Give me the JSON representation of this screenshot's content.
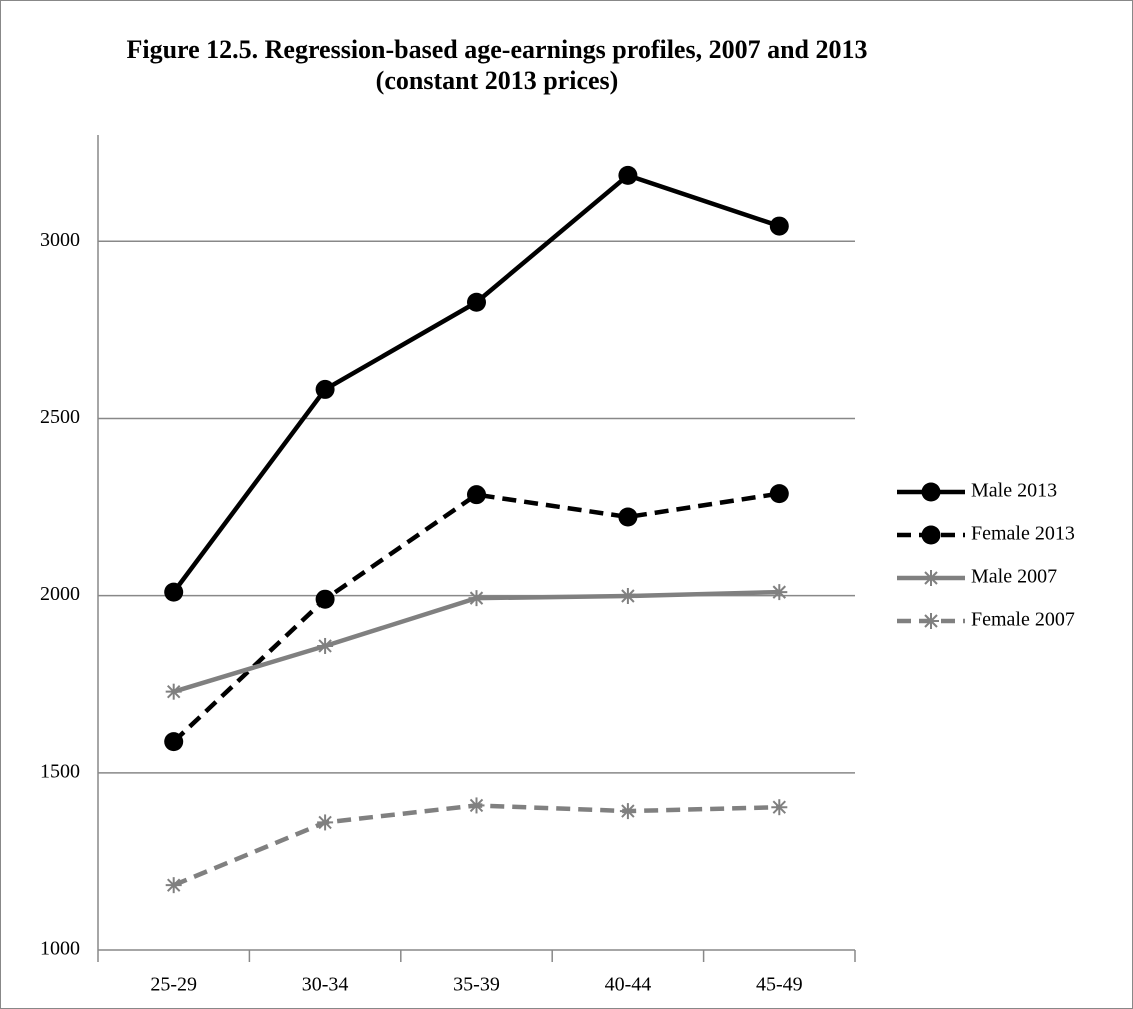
{
  "chart_data": {
    "type": "line",
    "title": "Figure 12.5. Regression-based age-earnings profiles, 2007 and 2013 (constant 2013 prices)",
    "categories": [
      "25-29",
      "30-34",
      "35-39",
      "40-44",
      "45-49"
    ],
    "series": [
      {
        "name": "Male 2013",
        "color": "#000000",
        "dash": false,
        "marker": "circle",
        "values": [
          2010,
          2582,
          2828,
          3186,
          3043
        ]
      },
      {
        "name": "Female 2013",
        "color": "#000000",
        "dash": true,
        "marker": "circle",
        "values": [
          1588,
          1990,
          2285,
          2222,
          2288
        ]
      },
      {
        "name": "Male 2007",
        "color": "#808080",
        "dash": false,
        "marker": "asterisk",
        "values": [
          1729,
          1858,
          1993,
          1999,
          2010
        ]
      },
      {
        "name": "Female 2007",
        "color": "#808080",
        "dash": true,
        "marker": "asterisk",
        "values": [
          1183,
          1360,
          1408,
          1392,
          1403
        ]
      }
    ],
    "ylim": [
      1000,
      3300
    ],
    "yticks": [
      1000,
      1500,
      2000,
      2500,
      3000
    ],
    "grid": true,
    "legend": "right"
  }
}
